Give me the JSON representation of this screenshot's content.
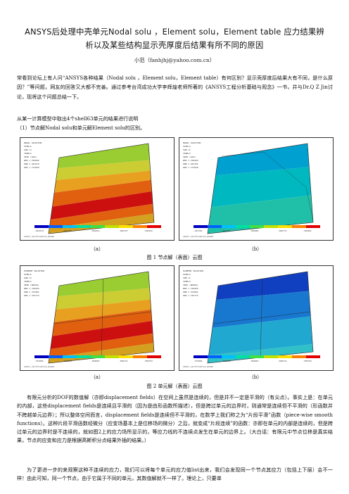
{
  "title_line1": "ANSYS后处理中壳单元Nodal solu ，Element solu，Element table 应力结果辨",
  "title_line2": "析以及某些结构显示壳厚度后结果有所不同的原因",
  "author": "小范（fanhjhj@yahoo.com.cn）",
  "intro_paragraph": "常看到论坛上有人问“ANSYS各种结果（Nodal solu ，Element solu，Element table）有何区别？显示壳厚度后结果大有不同，是什么原因？”等问题，网友的回答又大都不完善。通过参考台湾成功大学李辉煌老师所著的《ANSYS工程分析基础与观念》一书，并与Dr.Q Z Jin讨论，现将这个问题总结一下。",
  "section_line1": "从某一计算模型中取出4个shell63单元的结果进行说明",
  "section_line2": "（1）节点解Nodal solu和单元解Element solu的区别。",
  "figure1": {
    "caption": "图 1  节点解（表面）云图",
    "sub_a": "（a）",
    "sub_b": "（b）",
    "panel_a_header": [
      "NODAL SOLUTION",
      "STEP=1",
      "SUB =1",
      "TIME=1",
      "SEQV     (AVG)",
      "DMX =.703255",
      "SMN =.441579",
      "SMX =.777818"
    ],
    "panel_b_header": [
      "NODAL SOLUTION",
      "STEP=1",
      "SUB =1",
      "TIME=1",
      "SEQV     (AVG)",
      "DMX =.703255",
      "SMN =.441701",
      "SMX =.777818"
    ],
    "panel_a_legend": [
      ".441579",
      ".516295",
      ".591011",
      ".665727",
      ".740443"
    ],
    "panel_b_legend": [
      ".441701",
      ".516391",
      ".591081",
      ".665771",
      ".740461"
    ],
    "footer": "shell_verification_model"
  },
  "figure2": {
    "caption": "图 2  单元解（表面）云图",
    "sub_a": "（a）",
    "sub_b": "（b）",
    "panel_a_header": [
      "ELEMENT SOLUTION",
      "STEP=1",
      "SUB =1",
      "TIME=1",
      "SEQV     (NOAVG)",
      "DMX =.703255",
      "SMN =.374581",
      "SMX =.797773"
    ],
    "panel_b_header": [
      "ELEMENT SOLUTION",
      "STEP=1",
      "SUB =1",
      "TIME=1",
      "SEQV     (NOAVG)",
      "DMX =.703255",
      "SMN =.374581",
      "SMX =.797773"
    ],
    "panel_a_legend": [
      ".374581",
      ".468624",
      ".562667",
      ".656711",
      ".750754"
    ],
    "panel_b_legend": [
      ".374581",
      ".468624",
      ".562667",
      ".656711",
      ".750754"
    ],
    "footer": "shell_verification_model"
  },
  "body_paragraph1": "有限元分析的DOF的数值解（亦即displacement fields）在空间上虽然是连续的，但是并不一定是平滑的（有尖点）。事实上是：在单元的内部，这些displacement fields是连续且平滑的（因为是由形函数所描述），但是跨过单元的边界时，则通常是连续但不平滑的（形函数并不跨越单元边界）；所以整体空间而言，displacement fields是连续但不平滑的，在数学上我们称之为“片段平滑”函数（piece-wise smooth functions）。这种片段平滑函数经微分（应变场基本上是位移场的微分）之后，就变成“片段连续”的函数：亦即在单元的内部是连续的，但是跨过单元的边界时是不连续的，就如图2上的应力场所显示的，等应力线的不连续点发生在单元的边界上。（大白话：有限元中节点位移是真实结果，节点的应变和应力是根据高斯积分点结果外插的结果。）",
  "body_paragraph2": "为了更进一步的来观察这种不连续的应力，我们可以将每个单元的应力值list出来，我们会发现同一个节点其应力（包括上下层）会不一样！由此可知，同一个节点，由于它属于不同的单元，其数值解就不一样了。理论上，只要单"
}
